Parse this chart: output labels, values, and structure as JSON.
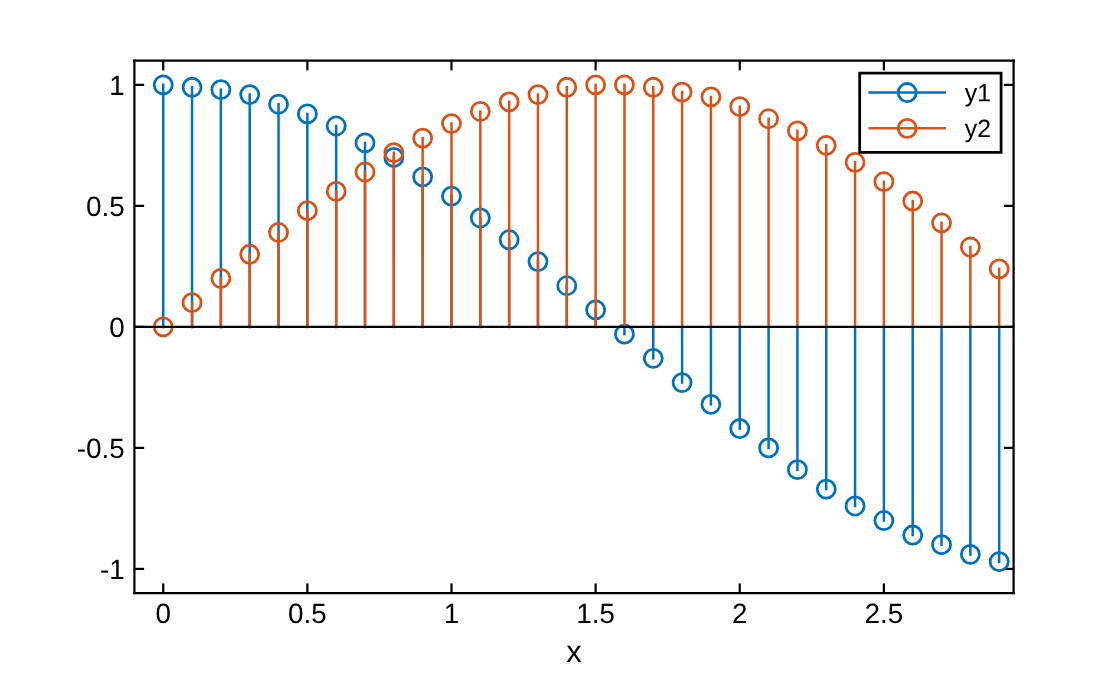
{
  "chart_data": {
    "type": "lollipop",
    "xlabel": "x",
    "x": [
      0,
      0.1,
      0.2,
      0.3,
      0.4,
      0.5,
      0.6,
      0.7,
      0.8,
      0.9,
      1.0,
      1.1,
      1.2,
      1.3,
      1.4,
      1.5,
      1.6,
      1.7,
      1.8,
      1.9,
      2.0,
      2.1,
      2.2,
      2.3,
      2.4,
      2.5,
      2.6,
      2.7,
      2.8,
      2.9
    ],
    "series": [
      {
        "name": "y1",
        "color": "#0072bd",
        "values": [
          1.0,
          0.99,
          0.98,
          0.96,
          0.92,
          0.88,
          0.83,
          0.76,
          0.7,
          0.62,
          0.54,
          0.45,
          0.36,
          0.27,
          0.17,
          0.07,
          -0.03,
          -0.13,
          -0.23,
          -0.32,
          -0.42,
          -0.5,
          -0.59,
          -0.67,
          -0.74,
          -0.8,
          -0.86,
          -0.9,
          -0.94,
          -0.97
        ]
      },
      {
        "name": "y2",
        "color": "#d95319",
        "values": [
          0.0,
          0.1,
          0.2,
          0.3,
          0.39,
          0.48,
          0.56,
          0.64,
          0.72,
          0.78,
          0.84,
          0.89,
          0.93,
          0.96,
          0.99,
          1.0,
          1.0,
          0.99,
          0.97,
          0.95,
          0.91,
          0.86,
          0.81,
          0.75,
          0.68,
          0.6,
          0.52,
          0.43,
          0.33,
          0.24
        ]
      }
    ],
    "xlim": [
      -0.1,
      2.95
    ],
    "ylim": [
      -1.1,
      1.1
    ],
    "xticks": [
      0,
      0.5,
      1,
      1.5,
      2,
      2.5
    ],
    "yticks": [
      -1,
      -0.5,
      0,
      0.5,
      1
    ],
    "ref_lines": [
      {
        "axis": "y",
        "value": 0,
        "color": "#000000"
      }
    ],
    "marker": "circle",
    "legend": "top right",
    "grid": false
  }
}
